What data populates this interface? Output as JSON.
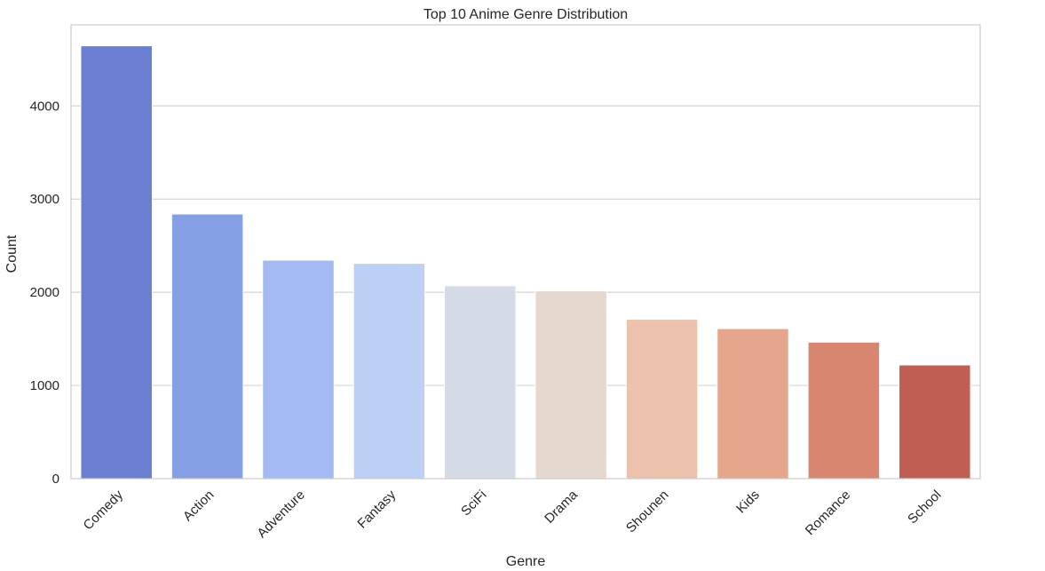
{
  "chart_data": {
    "type": "bar",
    "title": "Top 10 Anime Genre Distribution",
    "xlabel": "Genre",
    "ylabel": "Count",
    "ylim": [
      0,
      4870
    ],
    "yticks": [
      0,
      1000,
      2000,
      3000,
      4000
    ],
    "grid": "horizontal",
    "categories": [
      "Comedy",
      "Action",
      "Adventure",
      "Fantasy",
      "SciFi",
      "Drama",
      "Shounen",
      "Kids",
      "Romance",
      "School"
    ],
    "values": [
      4645,
      2840,
      2345,
      2310,
      2070,
      2015,
      1710,
      1610,
      1465,
      1220
    ],
    "colors": [
      "#6a7ed2",
      "#859fe4",
      "#a3bbf2",
      "#bccff4",
      "#d4dae6",
      "#e4d8cf",
      "#ecc2ad",
      "#e6a68b",
      "#d98670",
      "#c15e52"
    ]
  }
}
